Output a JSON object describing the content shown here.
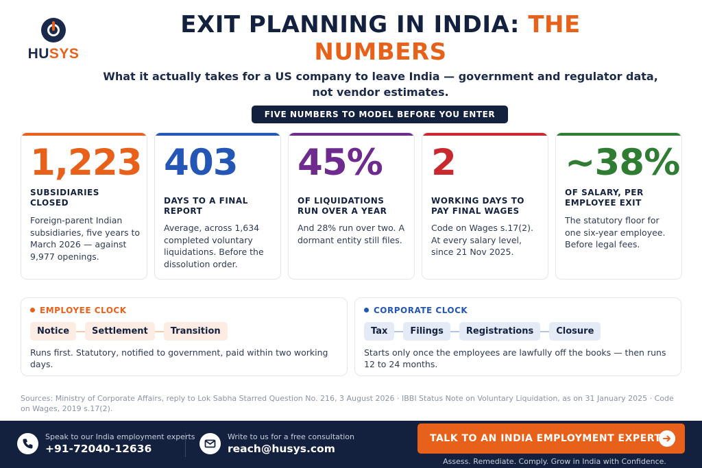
{
  "brand": {
    "logo_prefix": "HU",
    "logo_suffix": "SYS",
    "brand_color": "#e8611a",
    "navy": "#13213f"
  },
  "header": {
    "title_main": "EXIT PLANNING IN INDIA:",
    "title_accent": "THE NUMBERS",
    "subtitle": "What it actually takes for a US company to leave India — government and regulator data, not vendor estimates.",
    "pill": "FIVE NUMBERS TO MODEL BEFORE YOU ENTER"
  },
  "cards": [
    {
      "prefix": "",
      "value": "1,223",
      "suffix": "",
      "label": "SUBSIDIARIES CLOSED",
      "desc": "Foreign-parent Indian subsidiaries, five years to March 2026 — against 9,977 openings.",
      "color": "#e8611a"
    },
    {
      "prefix": "",
      "value": "403",
      "suffix": "",
      "label": "DAYS TO A FINAL REPORT",
      "desc": "Average, across 1,634 completed voluntary liquidations. Before the dissolution order.",
      "color": "#2457b5"
    },
    {
      "prefix": "",
      "value": "45",
      "suffix": "%",
      "label": "OF LIQUIDATIONS RUN OVER A YEAR",
      "desc": "And 28% run over two. A dormant entity still files.",
      "color": "#6f2a8e"
    },
    {
      "prefix": "",
      "value": "2",
      "suffix": "",
      "label": "WORKING DAYS TO PAY FINAL WAGES",
      "desc": "Code on Wages s.17(2). At every salary level, since 21 Nov 2025.",
      "color": "#c8282e"
    },
    {
      "prefix": "~",
      "value": "38",
      "suffix": "%",
      "label": "OF SALARY, PER EMPLOYEE EXIT",
      "desc": "The statutory floor for one six-year employee. Before legal fees.",
      "color": "#2f7d32"
    }
  ],
  "employee_clock": {
    "heading": "EMPLOYEE CLOCK",
    "color": "#e8611a",
    "steps": [
      "Notice",
      "Settlement",
      "Transition"
    ],
    "note": "Runs first. Statutory, notified to government, paid within two working days."
  },
  "corporate_clock": {
    "heading": "CORPORATE CLOCK",
    "color": "#2457b5",
    "steps": [
      "Tax",
      "Filings",
      "Registrations",
      "Closure"
    ],
    "note": "Starts only once the employees are lawfully off the books — then runs 12 to 24 months."
  },
  "sources": "Sources: Ministry of Corporate Affairs, reply to Lok Sabha Starred Question No. 216, 3 August 2026 · IBBI Status Note on Voluntary Liquidation, as on 31 January 2025 · Code on Wages, 2019 s.17(2).",
  "footer": {
    "phone_caption": "Speak to our India employment experts",
    "phone": "+91-72040-12636",
    "email_caption": "Write to us for a free consultation",
    "email": "reach@husys.com",
    "cta": "TALK TO AN INDIA EMPLOYMENT EXPERT",
    "tagline": "Assess. Remediate. Comply. Grow in India with Confidence."
  },
  "icons": {
    "phone": "phone-icon",
    "mail": "mail-icon",
    "cta": "arrow-right-icon",
    "logo": "power-logo-icon"
  }
}
